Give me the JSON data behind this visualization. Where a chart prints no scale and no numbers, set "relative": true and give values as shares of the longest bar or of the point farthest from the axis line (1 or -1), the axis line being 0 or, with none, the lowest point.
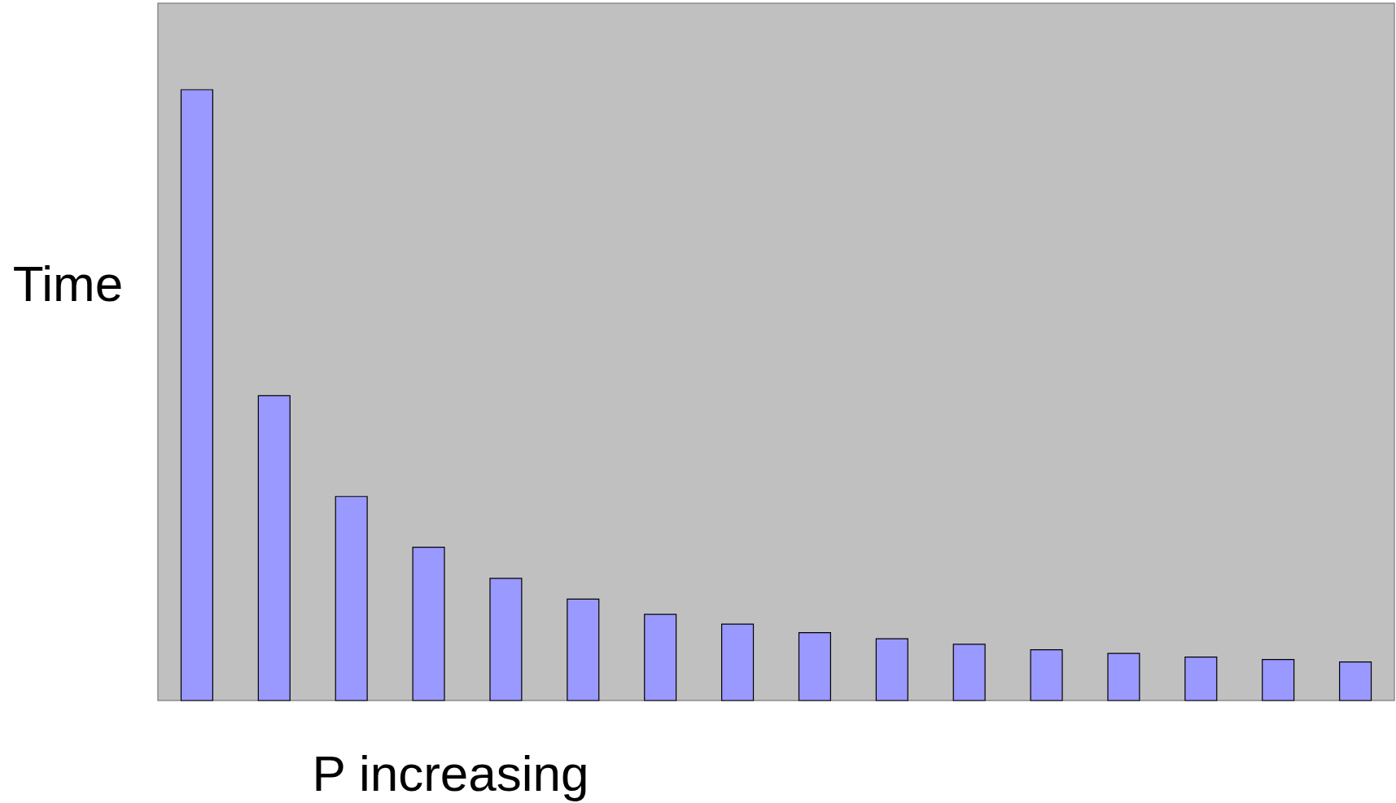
{
  "chart_data": {
    "type": "bar",
    "relative": true,
    "xlabel": "P increasing",
    "ylabel": "Time",
    "categories": [
      null,
      null,
      null,
      null,
      null,
      null,
      null,
      null,
      null,
      null,
      null,
      null,
      null,
      null,
      null,
      null
    ],
    "values": [
      1,
      0.499,
      0.334,
      0.251,
      0.2,
      0.166,
      0.141,
      0.125,
      0.111,
      0.101,
      0.092,
      0.083,
      0.077,
      0.071,
      0.067,
      0.063
    ],
    "color": "#9999ff"
  }
}
